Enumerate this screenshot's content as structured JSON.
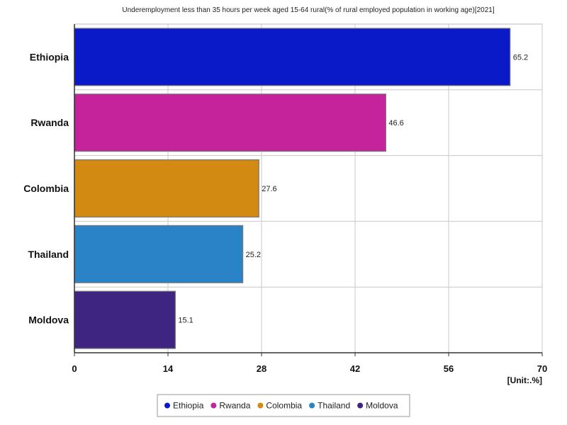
{
  "chart_data": {
    "type": "bar",
    "orientation": "horizontal",
    "title": "Underemployment less than 35 hours per week aged 15-64 rural(% of rural employed population in working age)[2021]",
    "categories": [
      "Ethiopia",
      "Rwanda",
      "Colombia",
      "Thailand",
      "Moldova"
    ],
    "values": [
      65.2,
      46.6,
      27.6,
      25.2,
      15.1
    ],
    "value_labels": [
      "65.2",
      "46.6",
      "27.6",
      "25.2",
      "15.1"
    ],
    "colors": [
      "#0a1ac8",
      "#c4239b",
      "#d38a12",
      "#2a83c6",
      "#3f2582"
    ],
    "xlim": [
      0,
      70
    ],
    "xticks": [
      0,
      14,
      28,
      42,
      56,
      70
    ],
    "xtick_labels": [
      "0",
      "14",
      "28",
      "42",
      "56",
      "70"
    ],
    "unit": "[Unit:.%]",
    "grid": true,
    "legend_position": "bottom",
    "legend": [
      "Ethiopia",
      "Rwanda",
      "Colombia",
      "Thailand",
      "Moldova"
    ]
  }
}
